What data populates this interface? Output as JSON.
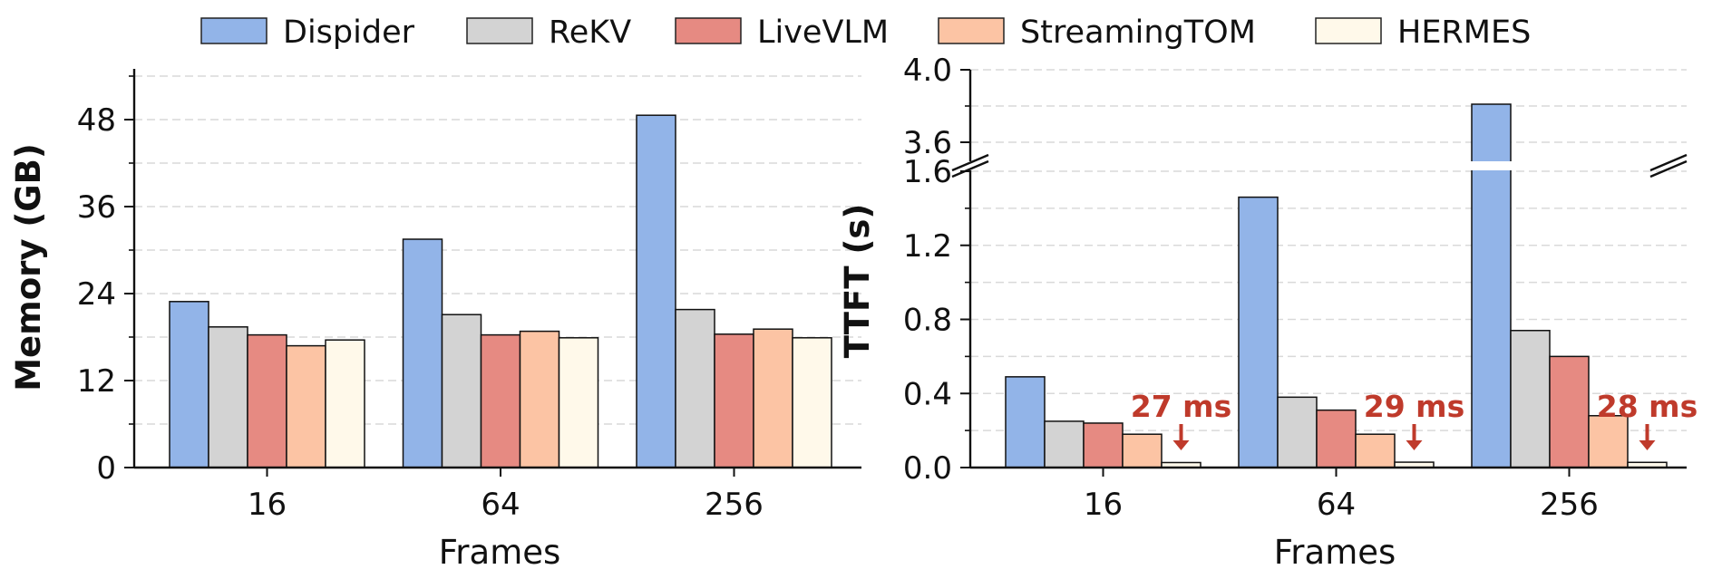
{
  "legend": [
    {
      "name": "Dispider",
      "color": "#92b4e8"
    },
    {
      "name": "ReKV",
      "color": "#d3d3d3"
    },
    {
      "name": "LiveVLM",
      "color": "#e68a82"
    },
    {
      "name": "StreamingTOM",
      "color": "#fcc4a4"
    },
    {
      "name": "HERMES",
      "color": "#fff9ea"
    }
  ],
  "annotation_color": "#bf3a2b",
  "chart_data": [
    {
      "type": "bar",
      "xlabel": "Frames",
      "ylabel": "Memory (GB)",
      "categories": [
        "16",
        "64",
        "256"
      ],
      "ylim": [
        0,
        54
      ],
      "yticks": [
        "0",
        "12",
        "24",
        "36",
        "48"
      ],
      "grid": "horizontal dashed",
      "series": [
        {
          "name": "Dispider",
          "values": [
            22.9,
            31.5,
            48.6
          ]
        },
        {
          "name": "ReKV",
          "values": [
            19.4,
            21.1,
            21.8
          ]
        },
        {
          "name": "LiveVLM",
          "values": [
            18.3,
            18.3,
            18.4
          ]
        },
        {
          "name": "StreamingTOM",
          "values": [
            16.8,
            18.8,
            19.1
          ]
        },
        {
          "name": "HERMES",
          "values": [
            17.6,
            17.9,
            17.9
          ]
        }
      ]
    },
    {
      "type": "bar",
      "xlabel": "Frames",
      "ylabel": "TTFT (s)",
      "categories": [
        "16",
        "64",
        "256"
      ],
      "ylim": [
        0,
        4.0
      ],
      "broken_axis": {
        "lower": [
          0,
          1.6
        ],
        "upper": [
          3.5,
          4.0
        ]
      },
      "yticks_lower": [
        "0.0",
        "0.4",
        "0.8",
        "1.2",
        "1.6"
      ],
      "yticks_upper": [
        "3.6",
        "4.0"
      ],
      "grid": "horizontal dashed",
      "series": [
        {
          "name": "Dispider",
          "values": [
            0.49,
            1.46,
            3.81
          ]
        },
        {
          "name": "ReKV",
          "values": [
            0.25,
            0.38,
            0.74
          ]
        },
        {
          "name": "LiveVLM",
          "values": [
            0.24,
            0.31,
            0.6
          ]
        },
        {
          "name": "StreamingTOM",
          "values": [
            0.18,
            0.18,
            0.28
          ]
        },
        {
          "name": "HERMES",
          "values": [
            0.027,
            0.029,
            0.028
          ]
        }
      ],
      "annotations": [
        "27 ms",
        "29 ms",
        "28 ms"
      ]
    }
  ]
}
